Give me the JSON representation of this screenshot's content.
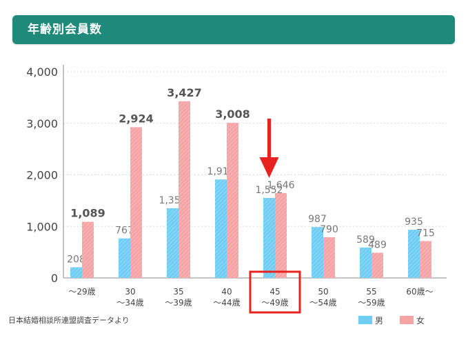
{
  "header": {
    "title": "年齢別会員数"
  },
  "source": "日本結婚相談所連盟調査データより",
  "colors": {
    "header_bg": "#1f8a7a",
    "male": "#6fcdf5",
    "female": "#f5a3a5",
    "arrow": "#e8231f",
    "highlight": "#e8231f"
  },
  "legend": [
    {
      "label": "男",
      "color": "#6fcdf5"
    },
    {
      "label": "女",
      "color": "#f5a3a5"
    }
  ],
  "chart_data": {
    "type": "bar",
    "title": "年齢別会員数",
    "categories": [
      [
        "〜29歳"
      ],
      [
        "30",
        "〜34歳"
      ],
      [
        "35",
        "〜39歳"
      ],
      [
        "40",
        "〜44歳"
      ],
      [
        "45",
        "〜49歳"
      ],
      [
        "50",
        "〜54歳"
      ],
      [
        "55",
        "〜59歳"
      ],
      [
        "60歳〜"
      ]
    ],
    "series": [
      {
        "name": "男",
        "values": [
          208,
          767,
          1353,
          1910,
          1552,
          987,
          589,
          935
        ]
      },
      {
        "name": "女",
        "values": [
          1089,
          2924,
          3427,
          3008,
          1646,
          790,
          489,
          715
        ]
      }
    ],
    "value_labels": [
      [
        "208",
        "767",
        "1,353",
        "1,910",
        "1,552",
        "987",
        "589",
        "935"
      ],
      [
        "1,089",
        "2,924",
        "3,427",
        "3,008",
        "1,646",
        "790",
        "489",
        "715"
      ]
    ],
    "emphasized_labels": [
      [
        "1,089",
        "2,924",
        "3,427",
        "3,008"
      ]
    ],
    "y_ticks": [
      0,
      1000,
      2000,
      3000,
      4000
    ],
    "y_tick_labels": [
      "0",
      "1,000",
      "2,000",
      "3,000",
      "4,000"
    ],
    "ylim": [
      0,
      4000
    ],
    "grid": true,
    "legend_position": "bottom-right",
    "annotations": {
      "highlighted_category_index": 4,
      "arrow_category_index": 4
    }
  }
}
